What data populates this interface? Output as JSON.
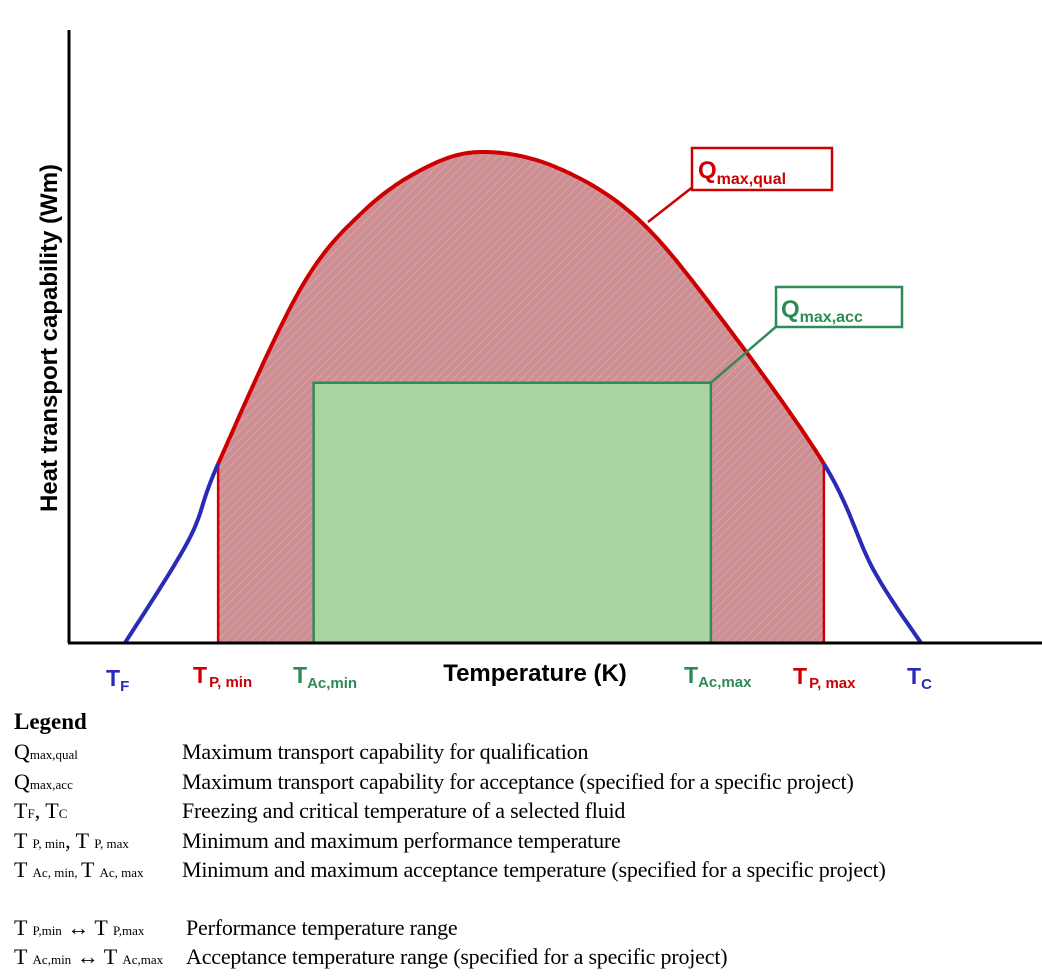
{
  "axes": {
    "y_label": "Heat transport capability (Wm)",
    "x_label": "Temperature (K)"
  },
  "curve": {
    "tf_k": 0.0,
    "tc_k": 1.0,
    "peak_temperature": 0.45,
    "peak_capability": 1.0,
    "p_min_temperature": 0.117,
    "p_max_temperature": 0.878,
    "ac_min_temperature": 0.237,
    "ac_max_temperature": 0.736,
    "qmax_acc_level": 0.53,
    "p_limit_capability": 0.365
  },
  "callouts": {
    "qual": {
      "main": "Q",
      "sub": "max,qual"
    },
    "acc": {
      "main": "Q",
      "sub": "max,acc"
    }
  },
  "tick_labels": {
    "tf": {
      "main": "T",
      "sub": "F"
    },
    "tp_min": {
      "main": "T",
      "sub": "P, min"
    },
    "tac_min": {
      "main": "T",
      "sub": "Ac,min"
    },
    "tac_max": {
      "main": "T",
      "sub": "Ac,max"
    },
    "tp_max": {
      "main": "T",
      "sub": "P, max"
    },
    "tc": {
      "main": "T",
      "sub": "C"
    }
  },
  "colors": {
    "qual": "#cc0000",
    "acc": "#2e8b57",
    "fluid": "#2a2ab8",
    "qual_fill": "#cc8c8f",
    "acc_fill": "#a8d5a2"
  },
  "legend": {
    "title": "Legend",
    "rows": [
      {
        "sym": [
          {
            "t": "Q"
          },
          {
            "s": "max,qual"
          }
        ],
        "desc": "Maximum transport capability for qualification"
      },
      {
        "sym": [
          {
            "t": "Q"
          },
          {
            "s": "max,acc"
          }
        ],
        "desc": "Maximum transport capability for acceptance (specified for a specific project)"
      },
      {
        "sym": [
          {
            "t": "T"
          },
          {
            "s": "F"
          },
          {
            "t": ", T"
          },
          {
            "s": "C"
          }
        ],
        "desc": "Freezing and critical temperature of a selected fluid"
      },
      {
        "sym": [
          {
            "t": "T "
          },
          {
            "s": "P, min"
          },
          {
            "t": ", T "
          },
          {
            "s": "P, max"
          }
        ],
        "desc": "Minimum and maximum performance temperature"
      },
      {
        "sym": [
          {
            "t": "T "
          },
          {
            "s": "Ac, min, "
          },
          {
            "t": "T "
          },
          {
            "s": "Ac, max"
          }
        ],
        "desc": "Minimum and maximum acceptance temperature (specified for a specific project)"
      }
    ],
    "ranges": [
      {
        "sym": [
          {
            "t": "T "
          },
          {
            "s": "P,min"
          },
          {
            "t": " ↔ T "
          },
          {
            "s": "P,max"
          }
        ],
        "desc": "Performance temperature range"
      },
      {
        "sym": [
          {
            "t": "T "
          },
          {
            "s": "Ac,min"
          },
          {
            "t": " ↔ T "
          },
          {
            "s": "Ac,max"
          }
        ],
        "desc": "Acceptance temperature range (specified for a specific project)"
      }
    ]
  }
}
